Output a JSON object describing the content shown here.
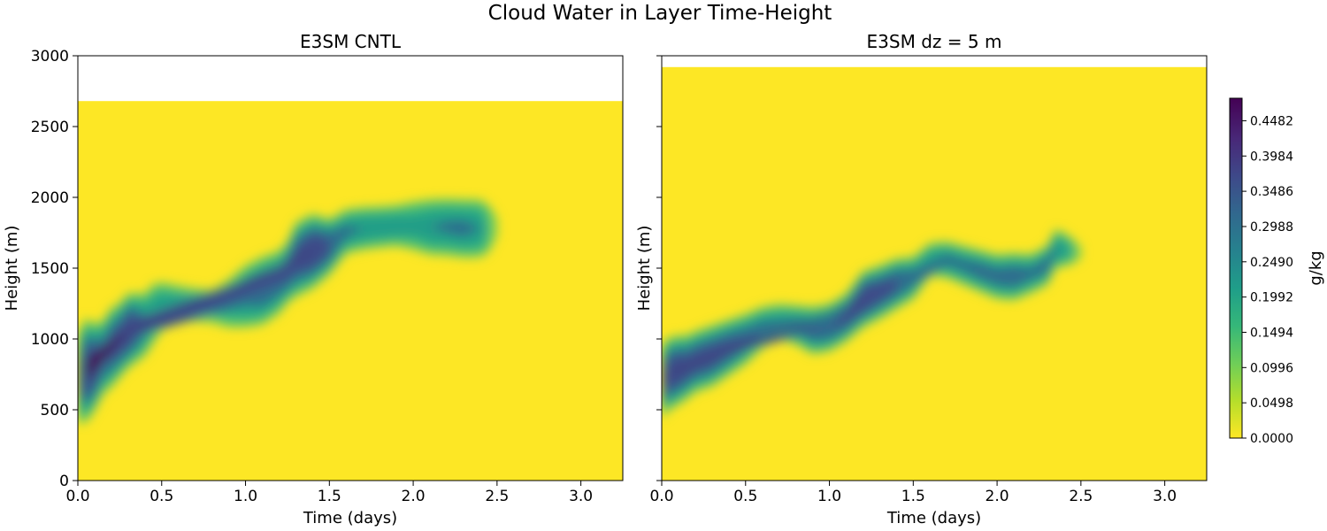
{
  "figure_title": "Cloud Water in Layer Time-Height",
  "colors": {
    "background": "#ffffff",
    "axis": "#000000",
    "viridis": [
      "#fde725",
      "#b5de2b",
      "#6ece58",
      "#35b779",
      "#1f9e89",
      "#26828e",
      "#31688e",
      "#3e4989",
      "#482878",
      "#440154"
    ]
  },
  "colorbar": {
    "label": "g/kg",
    "ticks": [
      "0.0000",
      "0.0498",
      "0.0996",
      "0.1494",
      "0.1992",
      "0.2490",
      "0.2988",
      "0.3486",
      "0.3984",
      "0.4482"
    ],
    "min": 0,
    "max": 0.48,
    "step": 0.0498
  },
  "chart_data": [
    {
      "type": "heatmap",
      "title": "E3SM CNTL",
      "xlabel": "Time (days)",
      "ylabel": "Height (m)",
      "xlim": [
        0,
        3.25
      ],
      "ylim": [
        0,
        3000
      ],
      "x_ticks": [
        "0.0",
        "0.5",
        "1.0",
        "1.5",
        "2.0",
        "2.5",
        "3.0"
      ],
      "y_ticks": [
        "0",
        "500",
        "1000",
        "1500",
        "2000",
        "2500",
        "3000"
      ],
      "data_top_height_m": 2680,
      "cloud_layer": {
        "time_days": [
          0.0,
          0.05,
          0.1,
          0.15,
          0.2,
          0.25,
          0.3,
          0.35,
          0.4,
          0.45,
          0.5,
          0.6,
          0.7,
          0.8,
          0.9,
          1.0,
          1.1,
          1.2,
          1.25,
          1.3,
          1.4,
          1.5,
          1.6,
          1.7,
          1.8,
          1.9,
          2.0,
          2.1,
          2.2,
          2.3,
          2.4,
          2.45,
          2.5
        ],
        "center_height_m": [
          720,
          780,
          800,
          870,
          940,
          990,
          1060,
          1080,
          1100,
          1180,
          1230,
          1250,
          1240,
          1230,
          1250,
          1300,
          1340,
          1400,
          1470,
          1560,
          1620,
          1650,
          1760,
          1780,
          1790,
          1800,
          1800,
          1790,
          1790,
          1780,
          1780,
          1780,
          1790
        ],
        "thickness_m": [
          700,
          780,
          650,
          560,
          600,
          560,
          560,
          520,
          480,
          460,
          380,
          300,
          280,
          280,
          380,
          480,
          520,
          480,
          460,
          560,
          560,
          420,
          340,
          330,
          320,
          320,
          380,
          430,
          440,
          450,
          450,
          380,
          200
        ],
        "peak_value": [
          0.3,
          0.46,
          0.43,
          0.36,
          0.4,
          0.4,
          0.44,
          0.38,
          0.3,
          0.27,
          0.25,
          0.18,
          0.16,
          0.16,
          0.24,
          0.3,
          0.34,
          0.33,
          0.38,
          0.4,
          0.44,
          0.38,
          0.3,
          0.28,
          0.27,
          0.26,
          0.24,
          0.28,
          0.29,
          0.3,
          0.28,
          0.2,
          0.08
        ]
      }
    },
    {
      "type": "heatmap",
      "title": "E3SM dz = 5 m",
      "xlabel": "Time (days)",
      "ylabel": "Height (m)",
      "xlim": [
        0,
        3.25
      ],
      "ylim": [
        0,
        3000
      ],
      "x_ticks": [
        "0.0",
        "0.5",
        "1.0",
        "1.5",
        "2.0",
        "2.5",
        "3.0"
      ],
      "y_ticks": [
        "0",
        "500",
        "1000",
        "1500",
        "2000",
        "2500",
        "3000"
      ],
      "data_top_height_m": 2920,
      "cloud_layer": {
        "time_days": [
          0.0,
          0.05,
          0.1,
          0.15,
          0.2,
          0.3,
          0.4,
          0.5,
          0.6,
          0.7,
          0.8,
          0.9,
          1.0,
          1.1,
          1.2,
          1.3,
          1.4,
          1.5,
          1.6,
          1.7,
          1.8,
          1.9,
          2.0,
          2.1,
          2.2,
          2.3,
          2.35,
          2.4,
          2.45,
          2.5
        ],
        "center_height_m": [
          700,
          760,
          780,
          800,
          840,
          880,
          940,
          1000,
          1080,
          1120,
          1100,
          1060,
          1080,
          1150,
          1280,
          1330,
          1390,
          1430,
          1560,
          1560,
          1520,
          1480,
          1440,
          1440,
          1460,
          1520,
          1640,
          1630,
          1620,
          1610
        ],
        "thickness_m": [
          560,
          540,
          520,
          480,
          460,
          460,
          420,
          380,
          320,
          280,
          300,
          360,
          360,
          360,
          420,
          400,
          380,
          320,
          260,
          280,
          300,
          320,
          340,
          360,
          300,
          300,
          300,
          260,
          200,
          100
        ],
        "peak_value": [
          0.36,
          0.44,
          0.42,
          0.4,
          0.4,
          0.4,
          0.38,
          0.34,
          0.3,
          0.26,
          0.3,
          0.34,
          0.36,
          0.38,
          0.44,
          0.4,
          0.38,
          0.32,
          0.26,
          0.3,
          0.3,
          0.32,
          0.32,
          0.34,
          0.3,
          0.32,
          0.3,
          0.26,
          0.22,
          0.1
        ]
      }
    }
  ]
}
